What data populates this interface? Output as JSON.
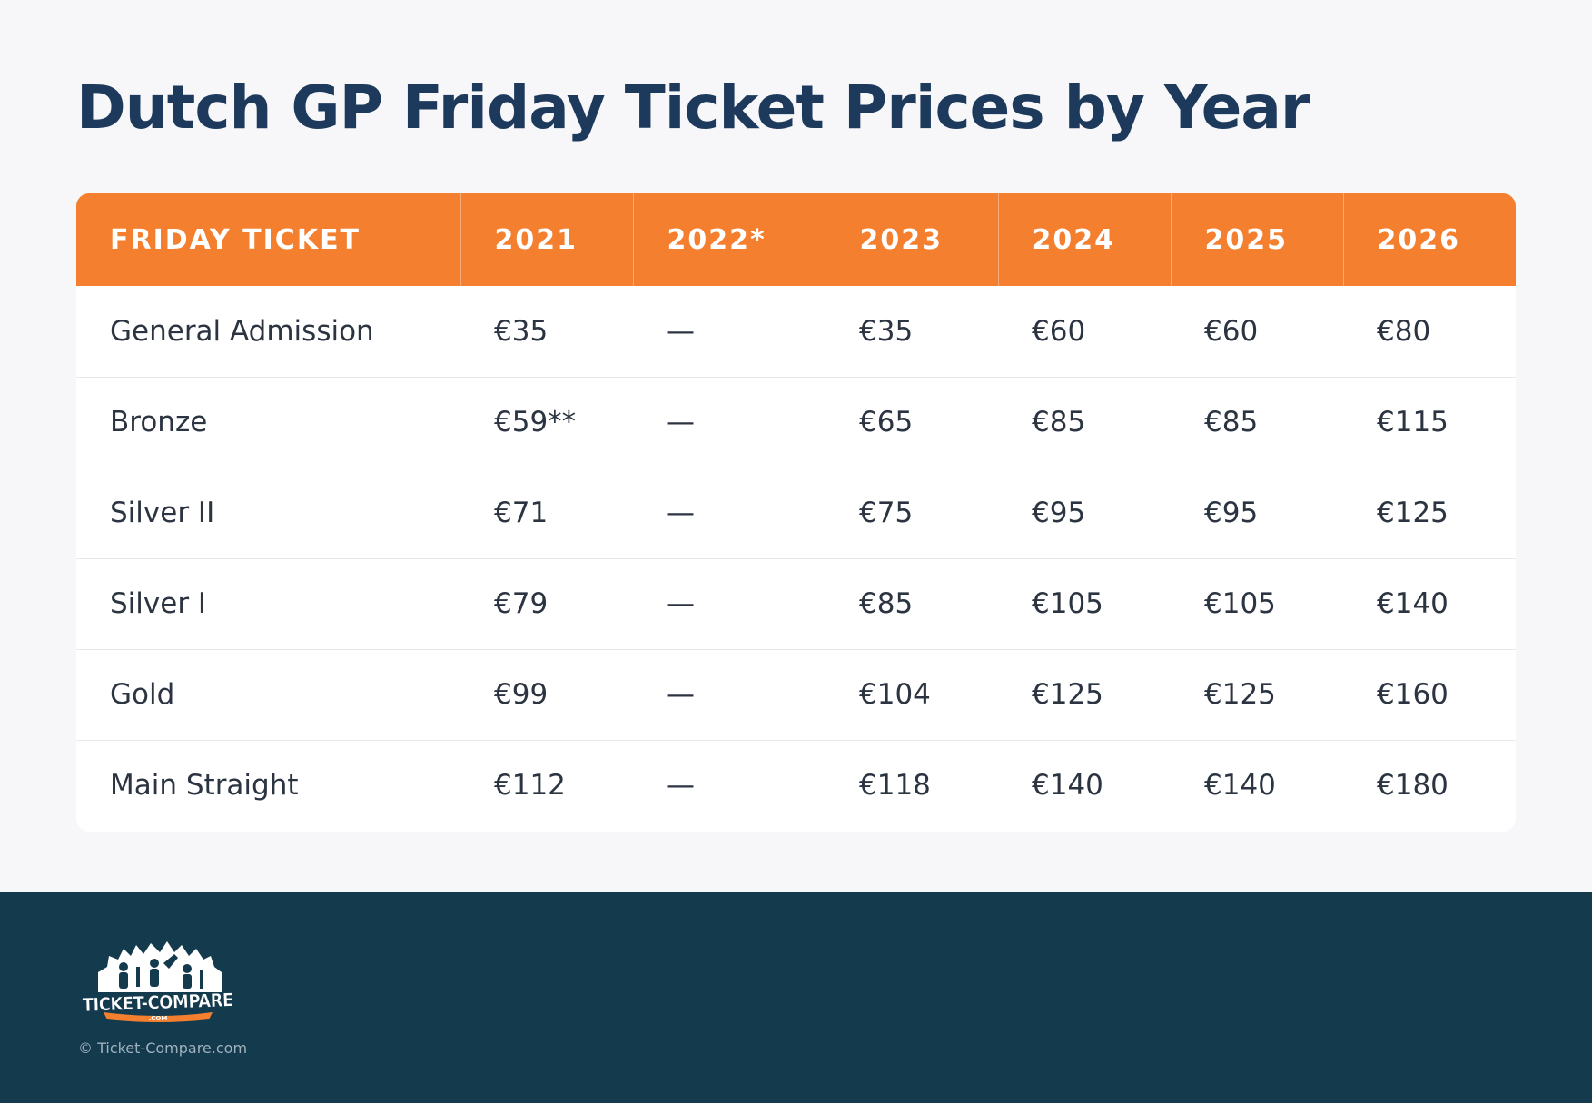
{
  "title": "Dutch GP Friday Ticket Prices by Year",
  "table": {
    "headers": [
      "FRIDAY TICKET",
      "2021",
      "2022*",
      "2023",
      "2024",
      "2025",
      "2026"
    ],
    "rows": [
      [
        "General Admission",
        "€35",
        "—",
        "€35",
        "€60",
        "€60",
        "€80"
      ],
      [
        "Bronze",
        "€59**",
        "—",
        "€65",
        "€85",
        "€85",
        "€115"
      ],
      [
        "Silver II",
        "€71",
        "—",
        "€75",
        "€95",
        "€95",
        "€125"
      ],
      [
        "Silver I",
        "€79",
        "—",
        "€85",
        "€105",
        "€105",
        "€140"
      ],
      [
        "Gold",
        "€99",
        "—",
        "€104",
        "€125",
        "€125",
        "€160"
      ],
      [
        "Main Straight",
        "€112",
        "—",
        "€118",
        "€140",
        "€140",
        "€180"
      ]
    ]
  },
  "footer": {
    "logo_text": "TICKET-COMPARE",
    "logo_subtext": ".COM",
    "copyright": "© Ticket-Compare.com"
  },
  "colors": {
    "title": "#1d3a5c",
    "header_bg": "#f47f2e",
    "footer_bg": "#143a4e",
    "page_bg": "#f7f7f9"
  }
}
